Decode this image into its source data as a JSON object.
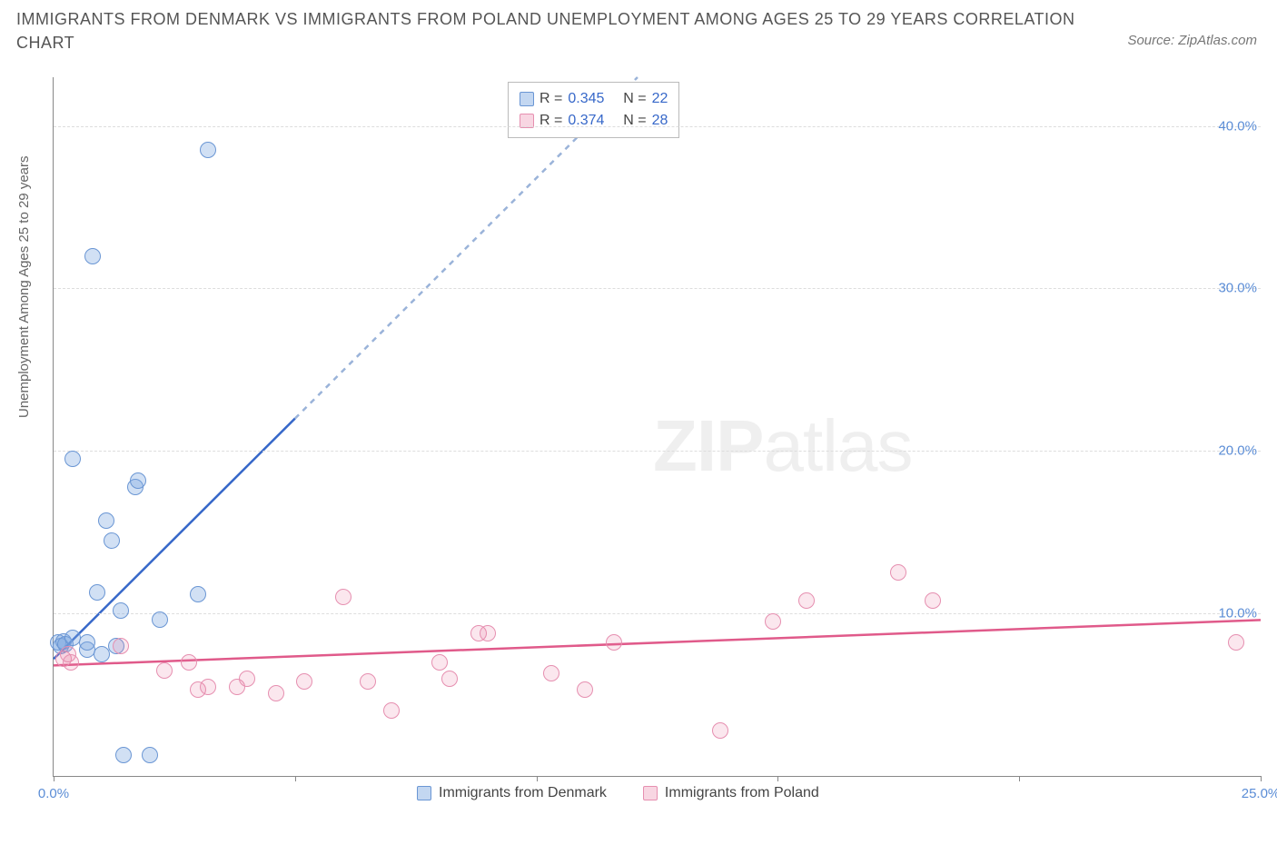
{
  "title": "IMMIGRANTS FROM DENMARK VS IMMIGRANTS FROM POLAND UNEMPLOYMENT AMONG AGES 25 TO 29 YEARS CORRELATION CHART",
  "source_label": "Source: ZipAtlas.com",
  "ylabel": "Unemployment Among Ages 25 to 29 years",
  "watermark_a": "ZIP",
  "watermark_b": "atlas",
  "chart": {
    "type": "scatter",
    "x_domain": [
      0,
      25
    ],
    "y_domain": [
      0,
      43
    ],
    "x_ticks": [
      {
        "v": 0,
        "label": "0.0%"
      },
      {
        "v": 5,
        "label": ""
      },
      {
        "v": 10,
        "label": ""
      },
      {
        "v": 15,
        "label": ""
      },
      {
        "v": 20,
        "label": ""
      },
      {
        "v": 25,
        "label": "25.0%"
      }
    ],
    "y_ticks_right": [
      {
        "v": 10,
        "label": "10.0%"
      },
      {
        "v": 20,
        "label": "20.0%"
      },
      {
        "v": 30,
        "label": "30.0%"
      },
      {
        "v": 40,
        "label": "40.0%"
      }
    ],
    "grid_color": "#dddddd",
    "series": [
      {
        "name": "Immigrants from Denmark",
        "color_key": "blue",
        "marker_radius": 9,
        "R": "0.345",
        "N": "22",
        "points": [
          [
            0.1,
            8.2
          ],
          [
            0.15,
            8.0
          ],
          [
            0.2,
            8.3
          ],
          [
            0.25,
            8.1
          ],
          [
            0.4,
            8.5
          ],
          [
            0.4,
            19.5
          ],
          [
            0.7,
            7.8
          ],
          [
            0.7,
            8.2
          ],
          [
            0.8,
            32.0
          ],
          [
            0.9,
            11.3
          ],
          [
            1.0,
            7.5
          ],
          [
            1.1,
            15.7
          ],
          [
            1.2,
            14.5
          ],
          [
            1.3,
            8.0
          ],
          [
            1.4,
            10.2
          ],
          [
            1.45,
            1.3
          ],
          [
            1.7,
            17.8
          ],
          [
            1.75,
            18.2
          ],
          [
            2.0,
            1.3
          ],
          [
            2.2,
            9.6
          ],
          [
            3.0,
            11.2
          ],
          [
            3.2,
            38.5
          ]
        ],
        "trend": {
          "x1": 0,
          "y1": 7.2,
          "x2": 5.0,
          "y2": 22.0,
          "extend_to_xmax": true,
          "line_color": "#3768c9",
          "dash_color": "#9ab3d9"
        }
      },
      {
        "name": "Immigrants from Poland",
        "color_key": "pink",
        "marker_radius": 9,
        "R": "0.374",
        "N": "28",
        "points": [
          [
            0.2,
            7.2
          ],
          [
            0.3,
            7.5
          ],
          [
            0.35,
            7.0
          ],
          [
            1.4,
            8.0
          ],
          [
            2.3,
            6.5
          ],
          [
            2.8,
            7.0
          ],
          [
            3.0,
            5.3
          ],
          [
            3.2,
            5.5
          ],
          [
            3.8,
            5.5
          ],
          [
            4.0,
            6.0
          ],
          [
            4.6,
            5.1
          ],
          [
            5.2,
            5.8
          ],
          [
            6.0,
            11.0
          ],
          [
            6.5,
            5.8
          ],
          [
            7.0,
            4.0
          ],
          [
            8.0,
            7.0
          ],
          [
            8.2,
            6.0
          ],
          [
            8.8,
            8.8
          ],
          [
            9.0,
            8.8
          ],
          [
            10.3,
            6.3
          ],
          [
            11.0,
            5.3
          ],
          [
            11.6,
            8.2
          ],
          [
            13.8,
            2.8
          ],
          [
            14.9,
            9.5
          ],
          [
            15.6,
            10.8
          ],
          [
            17.5,
            12.5
          ],
          [
            18.2,
            10.8
          ],
          [
            24.5,
            8.2
          ]
        ],
        "trend": {
          "x1": 0,
          "y1": 6.8,
          "x2": 25,
          "y2": 9.6,
          "extend_to_xmax": false,
          "line_color": "#e05a8a"
        }
      }
    ]
  },
  "legend_top": {
    "R_label": "R =",
    "N_label": "N ="
  },
  "legend_bottom": [
    {
      "swatch": "blue",
      "label": "Immigrants from Denmark"
    },
    {
      "swatch": "pink",
      "label": "Immigrants from Poland"
    }
  ]
}
